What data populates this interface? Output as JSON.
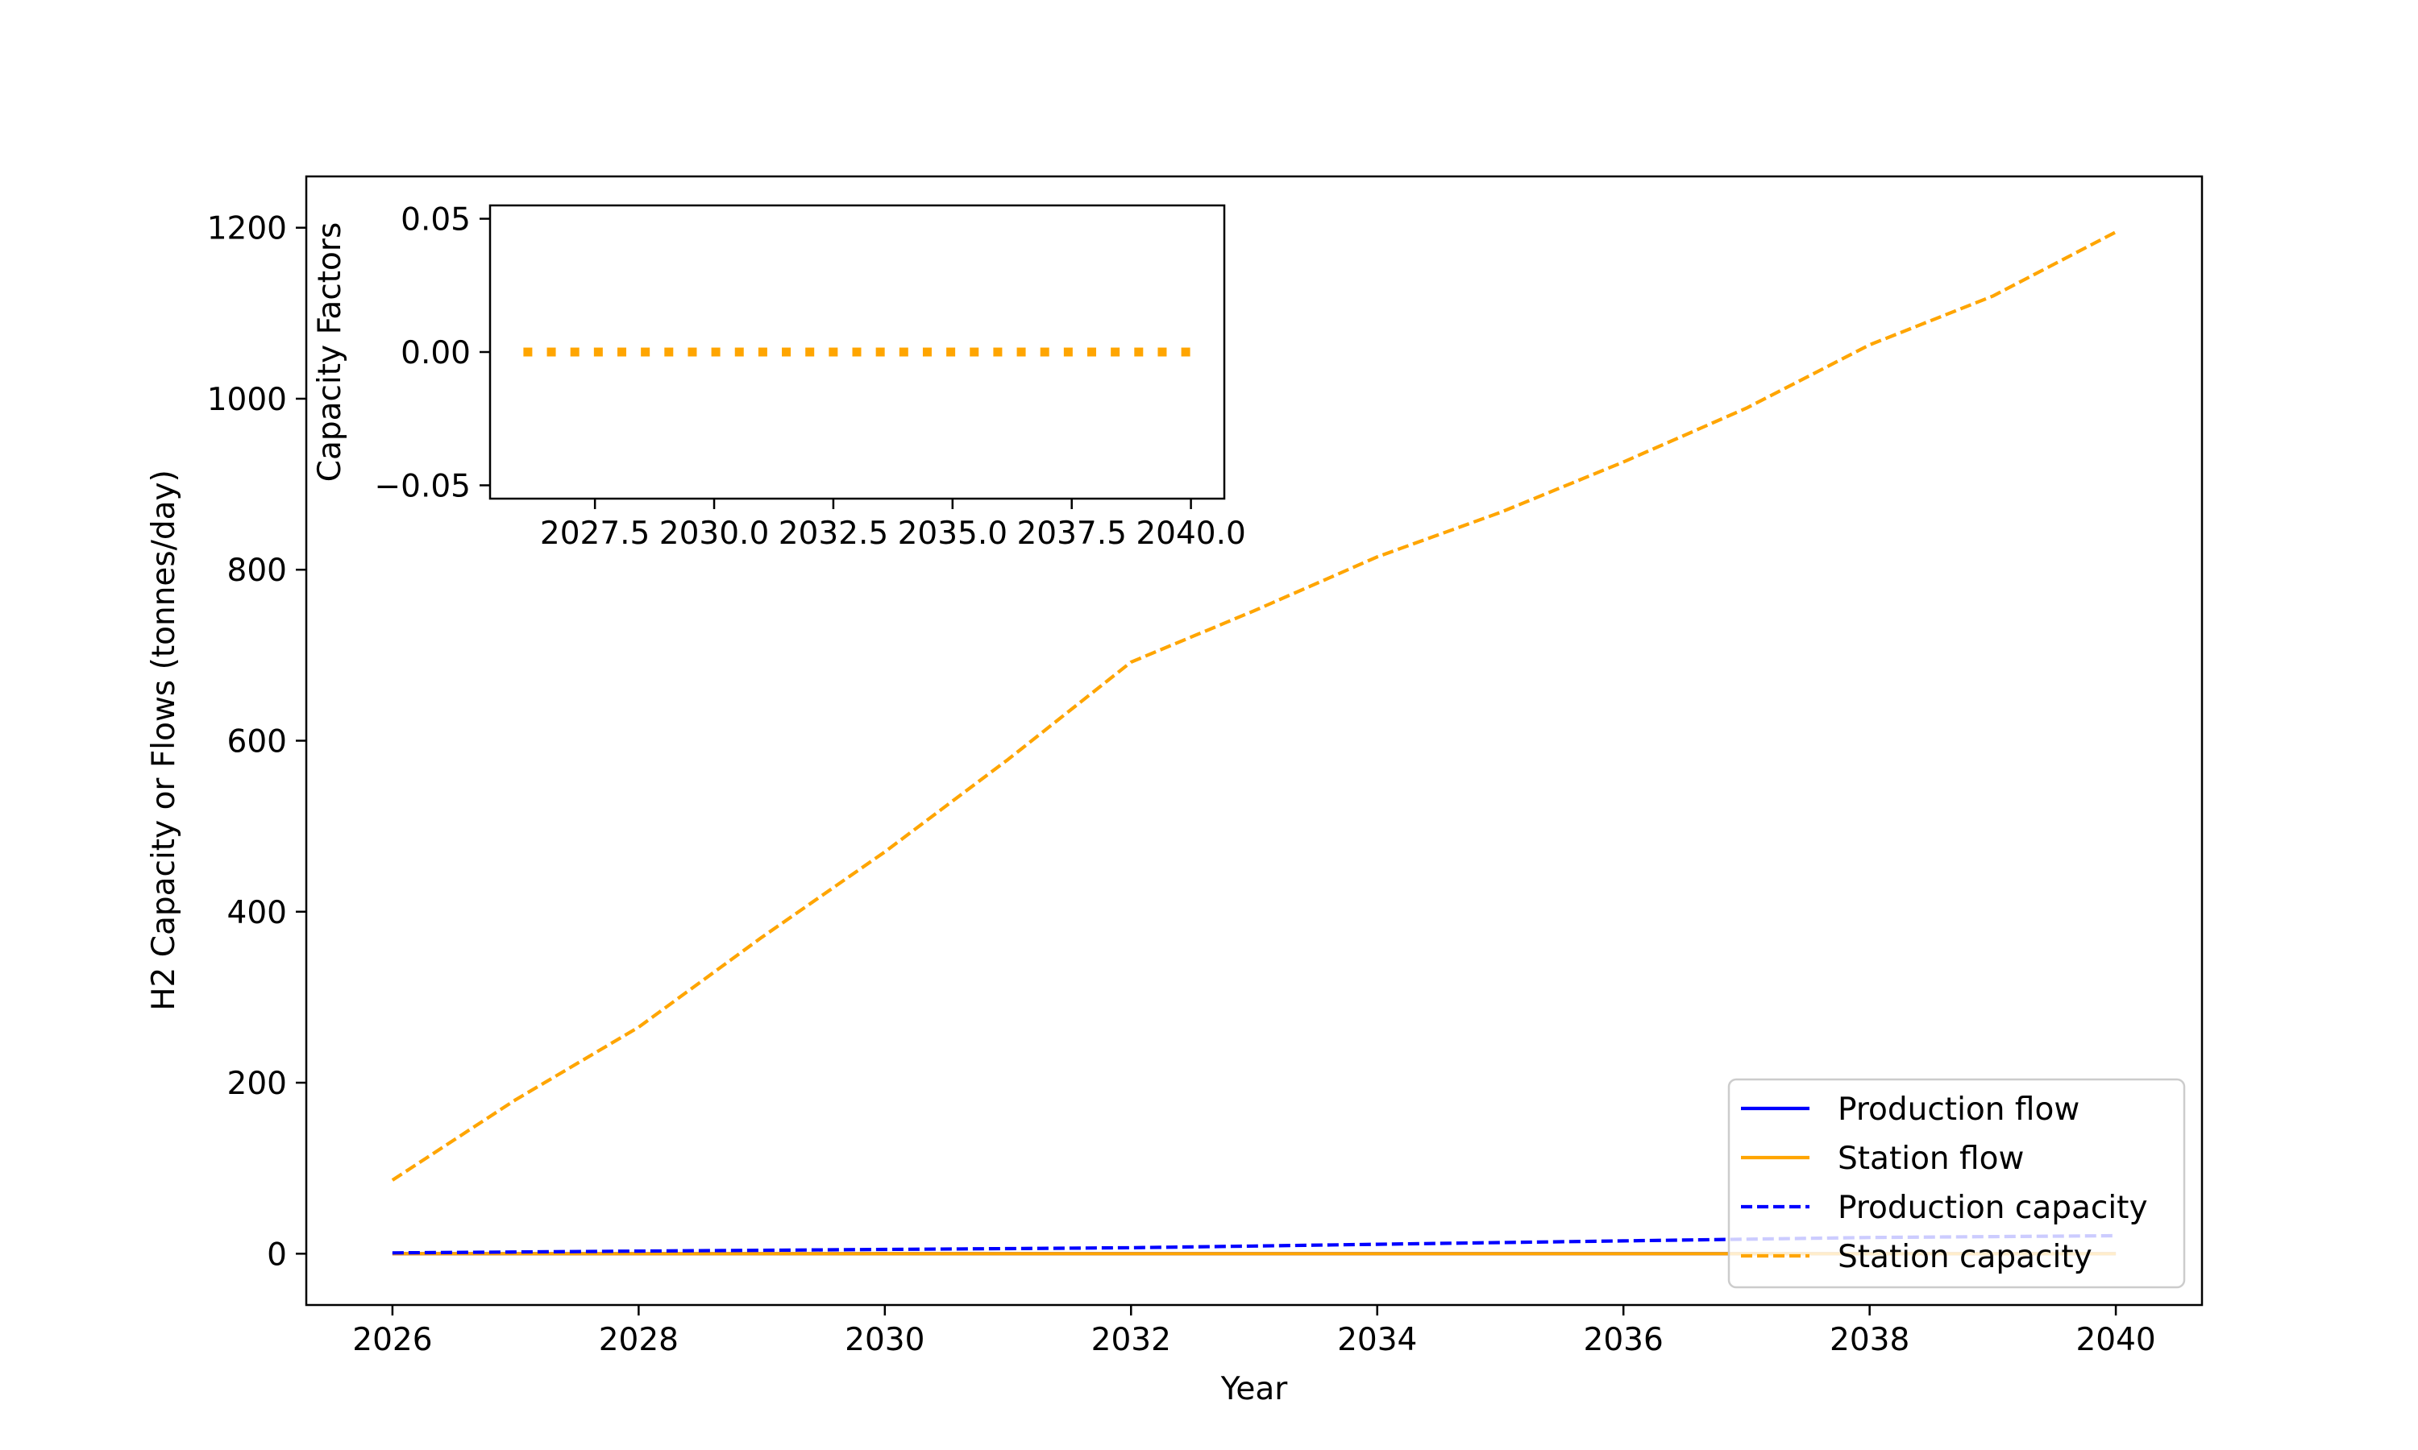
{
  "chart_data": [
    {
      "type": "line",
      "xlabel": "Year",
      "ylabel": "H2 Capacity or Flows (tonnes/day)",
      "x": [
        2026,
        2027,
        2028,
        2029,
        2030,
        2031,
        2032,
        2033,
        2034,
        2035,
        2036,
        2037,
        2038,
        2039,
        2040
      ],
      "xlim": [
        2025.3,
        2040.7
      ],
      "ylim": [
        -60,
        1260
      ],
      "xticks": [
        "2026",
        "2028",
        "2030",
        "2032",
        "2034",
        "2036",
        "2038",
        "2040"
      ],
      "xtick_values": [
        2026,
        2028,
        2030,
        2032,
        2034,
        2036,
        2038,
        2040
      ],
      "yticks": [
        "0",
        "200",
        "400",
        "600",
        "800",
        "1000",
        "1200"
      ],
      "ytick_values": [
        0,
        200,
        400,
        600,
        800,
        1000,
        1200
      ],
      "grid": false,
      "legend_position": "lower-right",
      "series": [
        {
          "name": "Production flow",
          "color": "#0000ff",
          "style": "solid",
          "values": [
            0,
            0,
            0,
            0,
            0,
            0,
            0,
            0,
            0,
            0,
            0,
            0,
            0,
            0,
            0
          ]
        },
        {
          "name": "Station flow",
          "color": "#ffa500",
          "style": "solid",
          "values": [
            0,
            0,
            0,
            0,
            0,
            0,
            0,
            0,
            0,
            0,
            0,
            0,
            0,
            0,
            0
          ]
        },
        {
          "name": "Production capacity",
          "color": "#0000ff",
          "style": "dashed",
          "values": [
            1,
            2,
            3,
            4,
            5,
            6,
            7,
            9,
            11,
            13,
            15,
            17,
            19,
            20,
            21
          ]
        },
        {
          "name": "Station capacity",
          "color": "#ffa500",
          "style": "dashed",
          "values": [
            86,
            180,
            265,
            370,
            470,
            578,
            692,
            752,
            815,
            867,
            926,
            989,
            1063,
            1120,
            1195
          ]
        }
      ]
    },
    {
      "type": "line",
      "xlabel": "",
      "ylabel": "Capacity Factors",
      "x": [
        2026,
        2027,
        2028,
        2029,
        2030,
        2031,
        2032,
        2033,
        2034,
        2035,
        2036,
        2037,
        2038,
        2039,
        2040
      ],
      "xlim": [
        2025.3,
        2040.7
      ],
      "ylim": [
        -0.055,
        0.055
      ],
      "xticks": [
        "2027.5",
        "2030.0",
        "2032.5",
        "2035.0",
        "2037.5",
        "2040.0"
      ],
      "xtick_values": [
        2027.5,
        2030.0,
        2032.5,
        2035.0,
        2037.5,
        2040.0
      ],
      "yticks": [
        "0.05",
        "0.00",
        "−0.05"
      ],
      "ytick_values": [
        0.05,
        0.0,
        -0.05
      ],
      "grid": false,
      "series": [
        {
          "color": "#ffa500",
          "style": "dotted",
          "values": [
            0,
            0,
            0,
            0,
            0,
            0,
            0,
            0,
            0,
            0,
            0,
            0,
            0,
            0,
            0
          ]
        }
      ]
    }
  ]
}
